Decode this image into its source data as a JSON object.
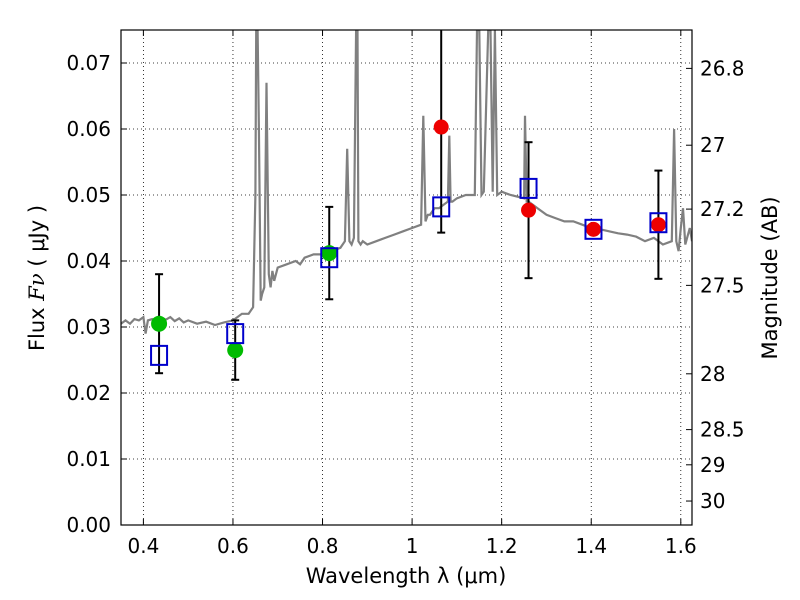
{
  "chart_data": {
    "type": "scatter",
    "xlabel": "Wavelength  λ (μm)",
    "ylabel_prefix": "Flux",
    "ylabel_symbol": "Fν",
    "ylabel_unit": "( μJy )",
    "y2label": "Magnitude (AB)",
    "xlim": [
      0.35,
      1.625
    ],
    "ylim": [
      0.0,
      0.075
    ],
    "grid": true,
    "x_ticks": [
      0.4,
      0.6,
      0.8,
      1.0,
      1.2,
      1.4,
      1.6
    ],
    "x_tick_labels": [
      "0.4",
      "0.6",
      "0.8",
      "1",
      "1.2",
      "1.4",
      "1.6"
    ],
    "y_ticks": [
      0.0,
      0.01,
      0.02,
      0.03,
      0.04,
      0.05,
      0.06,
      0.07
    ],
    "y_tick_labels": [
      "0.00",
      "0.01",
      "0.02",
      "0.03",
      "0.04",
      "0.05",
      "0.06",
      "0.07"
    ],
    "y2_ticks": [
      {
        "mag": 26.8,
        "label": "26.8"
      },
      {
        "mag": 27.0,
        "label": "27"
      },
      {
        "mag": 27.2,
        "label": "27.2"
      },
      {
        "mag": 27.5,
        "label": "27.5"
      },
      {
        "mag": 28.0,
        "label": "28"
      },
      {
        "mag": 28.5,
        "label": "28.5"
      },
      {
        "mag": 29.0,
        "label": "29"
      },
      {
        "mag": 30.0,
        "label": "30"
      }
    ],
    "colors": {
      "spectrum": "#808080",
      "model": "#0000cc",
      "green": "#00bb00",
      "red": "#ee0000",
      "errorbar": "#000000",
      "grid": "#000000"
    },
    "spectrum": {
      "x": [
        0.35,
        0.36,
        0.37,
        0.38,
        0.39,
        0.4,
        0.405,
        0.41,
        0.42,
        0.43,
        0.44,
        0.45,
        0.46,
        0.47,
        0.48,
        0.49,
        0.5,
        0.52,
        0.54,
        0.56,
        0.58,
        0.6,
        0.62,
        0.635,
        0.645,
        0.65,
        0.652,
        0.655,
        0.658,
        0.662,
        0.665,
        0.67,
        0.675,
        0.68,
        0.684,
        0.688,
        0.692,
        0.7,
        0.72,
        0.74,
        0.75,
        0.76,
        0.78,
        0.8,
        0.82,
        0.84,
        0.85,
        0.855,
        0.86,
        0.865,
        0.87,
        0.875,
        0.878,
        0.88,
        0.885,
        0.89,
        0.9,
        0.92,
        0.94,
        0.96,
        0.98,
        1.0,
        1.02,
        1.025,
        1.03,
        1.035,
        1.04,
        1.05,
        1.06,
        1.07,
        1.08,
        1.083,
        1.086,
        1.09,
        1.1,
        1.12,
        1.14,
        1.145,
        1.15,
        1.155,
        1.16,
        1.17,
        1.175,
        1.18,
        1.185,
        1.19,
        1.2,
        1.22,
        1.25,
        1.252,
        1.256,
        1.26,
        1.27,
        1.28,
        1.3,
        1.32,
        1.34,
        1.36,
        1.38,
        1.4,
        1.42,
        1.44,
        1.46,
        1.48,
        1.5,
        1.52,
        1.54,
        1.56,
        1.58,
        1.585,
        1.59,
        1.595,
        1.6,
        1.605,
        1.61,
        1.62,
        1.625
      ],
      "y": [
        0.0305,
        0.031,
        0.0305,
        0.0312,
        0.031,
        0.0315,
        0.029,
        0.031,
        0.0312,
        0.0308,
        0.0314,
        0.0311,
        0.0315,
        0.0309,
        0.0313,
        0.0307,
        0.031,
        0.0305,
        0.0308,
        0.0303,
        0.0307,
        0.031,
        0.032,
        0.032,
        0.033,
        0.05,
        0.075,
        0.075,
        0.06,
        0.034,
        0.035,
        0.036,
        0.067,
        0.038,
        0.036,
        0.0385,
        0.037,
        0.039,
        0.0395,
        0.04,
        0.0395,
        0.0405,
        0.041,
        0.041,
        0.0415,
        0.042,
        0.043,
        0.057,
        0.043,
        0.0425,
        0.0435,
        0.075,
        0.075,
        0.043,
        0.0425,
        0.043,
        0.0425,
        0.043,
        0.0435,
        0.044,
        0.0445,
        0.045,
        0.0455,
        0.062,
        0.046,
        0.047,
        0.047,
        0.048,
        0.048,
        0.0485,
        0.049,
        0.059,
        0.049,
        0.049,
        0.0495,
        0.05,
        0.05,
        0.075,
        0.075,
        0.05,
        0.0505,
        0.075,
        0.075,
        0.0505,
        0.075,
        0.05,
        0.0505,
        0.05,
        0.0495,
        0.062,
        0.049,
        0.049,
        0.0485,
        0.048,
        0.047,
        0.0465,
        0.046,
        0.046,
        0.0455,
        0.045,
        0.0448,
        0.0445,
        0.0442,
        0.044,
        0.0437,
        0.043,
        0.0435,
        0.0425,
        0.043,
        0.06,
        0.043,
        0.0415,
        0.045,
        0.048,
        0.0425,
        0.045,
        0.043
      ]
    },
    "model_points": [
      {
        "x": 0.435,
        "y": 0.0257
      },
      {
        "x": 0.605,
        "y": 0.029
      },
      {
        "x": 0.815,
        "y": 0.0405
      },
      {
        "x": 1.065,
        "y": 0.0482
      },
      {
        "x": 1.26,
        "y": 0.051
      },
      {
        "x": 1.405,
        "y": 0.0448
      },
      {
        "x": 1.55,
        "y": 0.0458
      }
    ],
    "observed_green": [
      {
        "x": 0.435,
        "y": 0.0305,
        "err_low": 0.0075,
        "err_high": 0.0075
      },
      {
        "x": 0.605,
        "y": 0.0265,
        "err_low": 0.0045,
        "err_high": 0.0045
      },
      {
        "x": 0.815,
        "y": 0.0412,
        "err_low": 0.007,
        "err_high": 0.007
      }
    ],
    "observed_red": [
      {
        "x": 1.065,
        "y": 0.0603,
        "err_low": 0.016,
        "err_high": 0.015
      },
      {
        "x": 1.26,
        "y": 0.0477,
        "err_low": 0.0103,
        "err_high": 0.0103
      },
      {
        "x": 1.405,
        "y": 0.0448,
        "err_low": 0.0,
        "err_high": 0.0
      },
      {
        "x": 1.55,
        "y": 0.0455,
        "err_low": 0.0082,
        "err_high": 0.0082
      }
    ]
  }
}
